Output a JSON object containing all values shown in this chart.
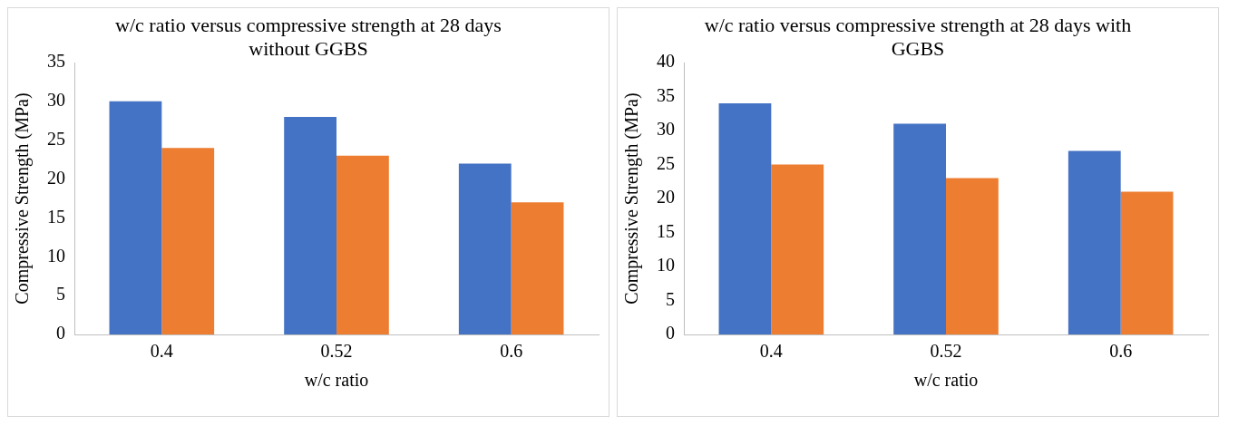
{
  "chart_data": [
    {
      "type": "bar",
      "title": "w/c ratio versus compressive strength at 28 days without GGBS",
      "xlabel": "w/c ratio",
      "ylabel": "Compressive Strength (MPa)",
      "categories": [
        "0.4",
        "0.52",
        "0.6"
      ],
      "series": [
        {
          "color": "#4472c4",
          "values": [
            30,
            28,
            22
          ]
        },
        {
          "color": "#ed7d31",
          "values": [
            24,
            23,
            17
          ]
        }
      ],
      "ylim": [
        0,
        35
      ],
      "yticks": [
        0,
        5,
        10,
        15,
        20,
        25,
        30,
        35
      ],
      "grid": false,
      "legend": false
    },
    {
      "type": "bar",
      "title": "w/c ratio versus compressive strength at 28 days with GGBS",
      "xlabel": "w/c ratio",
      "ylabel": "Compressive Strength (MPa)",
      "categories": [
        "0.4",
        "0.52",
        "0.6"
      ],
      "series": [
        {
          "color": "#4472c4",
          "values": [
            34,
            31,
            27
          ]
        },
        {
          "color": "#ed7d31",
          "values": [
            25,
            23,
            21
          ]
        }
      ],
      "ylim": [
        0,
        40
      ],
      "yticks": [
        0,
        5,
        10,
        15,
        20,
        25,
        30,
        35,
        40
      ],
      "grid": false,
      "legend": false
    }
  ]
}
